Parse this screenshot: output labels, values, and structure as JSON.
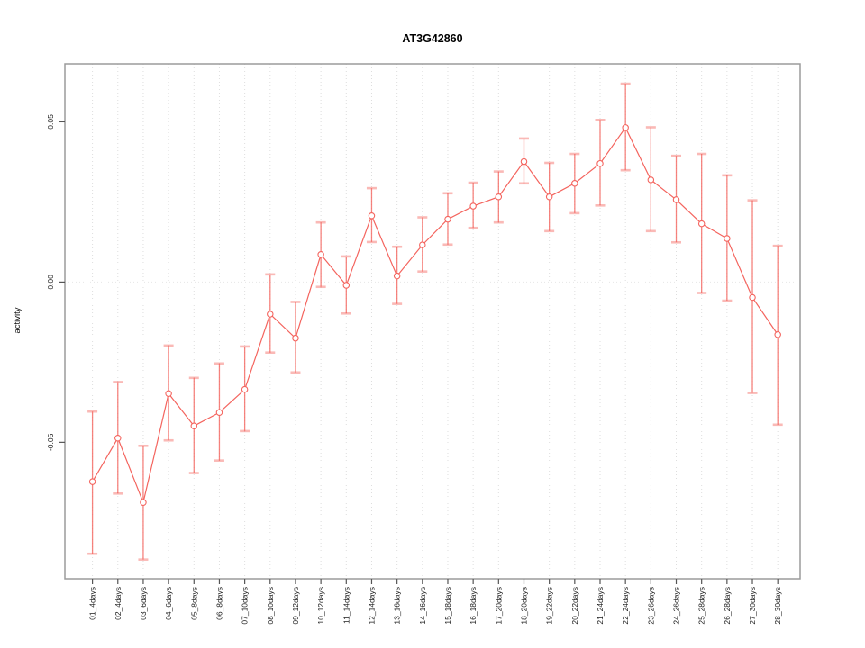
{
  "chart_data": {
    "type": "line",
    "title": "AT3G42860",
    "xlabel": "",
    "ylabel": "activity",
    "legend_position": "none",
    "grid": {
      "vertical": "dotted per category",
      "horizontal": "dotted at zero only"
    },
    "yticks": [
      {
        "value": -0.05,
        "label": "-0.05"
      },
      {
        "value": 0.0,
        "label": "0.00"
      },
      {
        "value": 0.05,
        "label": "0.05"
      }
    ],
    "ylim": [
      -0.0926,
      0.0681
    ],
    "categories": [
      "01_4days",
      "02_4days",
      "03_6days",
      "04_6days",
      "05_8days",
      "06_8days",
      "07_10days",
      "08_10days",
      "09_12days",
      "10_12days",
      "11_14days",
      "12_14days",
      "13_16days",
      "14_16days",
      "15_18days",
      "16_18days",
      "17_20days",
      "18_20days",
      "19_22days",
      "20_22days",
      "21_24days",
      "22_24days",
      "23_26days",
      "24_26days",
      "25_28days",
      "26_28days",
      "27_30days",
      "28_30days"
    ],
    "series": [
      {
        "name": "activity",
        "marker": "open-circle",
        "values": [
          -0.0623,
          -0.0487,
          -0.0688,
          -0.0348,
          -0.0449,
          -0.0407,
          -0.0335,
          -0.01,
          -0.0175,
          0.0086,
          -0.001,
          0.0207,
          0.0019,
          0.0116,
          0.0196,
          0.0237,
          0.0266,
          0.0376,
          0.0266,
          0.0308,
          0.037,
          0.0482,
          0.0319,
          0.0257,
          0.0182,
          0.0136,
          -0.0048,
          -0.0164
        ],
        "error_high": [
          -0.0404,
          -0.0312,
          -0.0511,
          -0.0198,
          -0.0299,
          -0.0254,
          -0.0201,
          0.0024,
          -0.0062,
          0.0186,
          0.008,
          0.0293,
          0.011,
          0.0202,
          0.0277,
          0.031,
          0.0345,
          0.0448,
          0.0372,
          0.04,
          0.0506,
          0.0619,
          0.0483,
          0.0394,
          0.04,
          0.0333,
          0.0255,
          0.0113
        ],
        "error_low": [
          -0.0848,
          -0.066,
          -0.0866,
          -0.0494,
          -0.0596,
          -0.0557,
          -0.0465,
          -0.022,
          -0.0282,
          -0.0015,
          -0.0098,
          0.0125,
          -0.0068,
          0.0033,
          0.0117,
          0.0169,
          0.0186,
          0.0308,
          0.0159,
          0.0215,
          0.0239,
          0.0349,
          0.0159,
          0.0124,
          -0.0034,
          -0.0058,
          -0.0346,
          -0.0445
        ]
      }
    ],
    "colors": {
      "series": "#f4645e",
      "error_bar": "#f4645e",
      "box_border": "#9b9b9b",
      "tick": "#555555",
      "gridline": "#dedede",
      "zero_line": "#e6e6e6",
      "background": "#ffffff"
    }
  }
}
